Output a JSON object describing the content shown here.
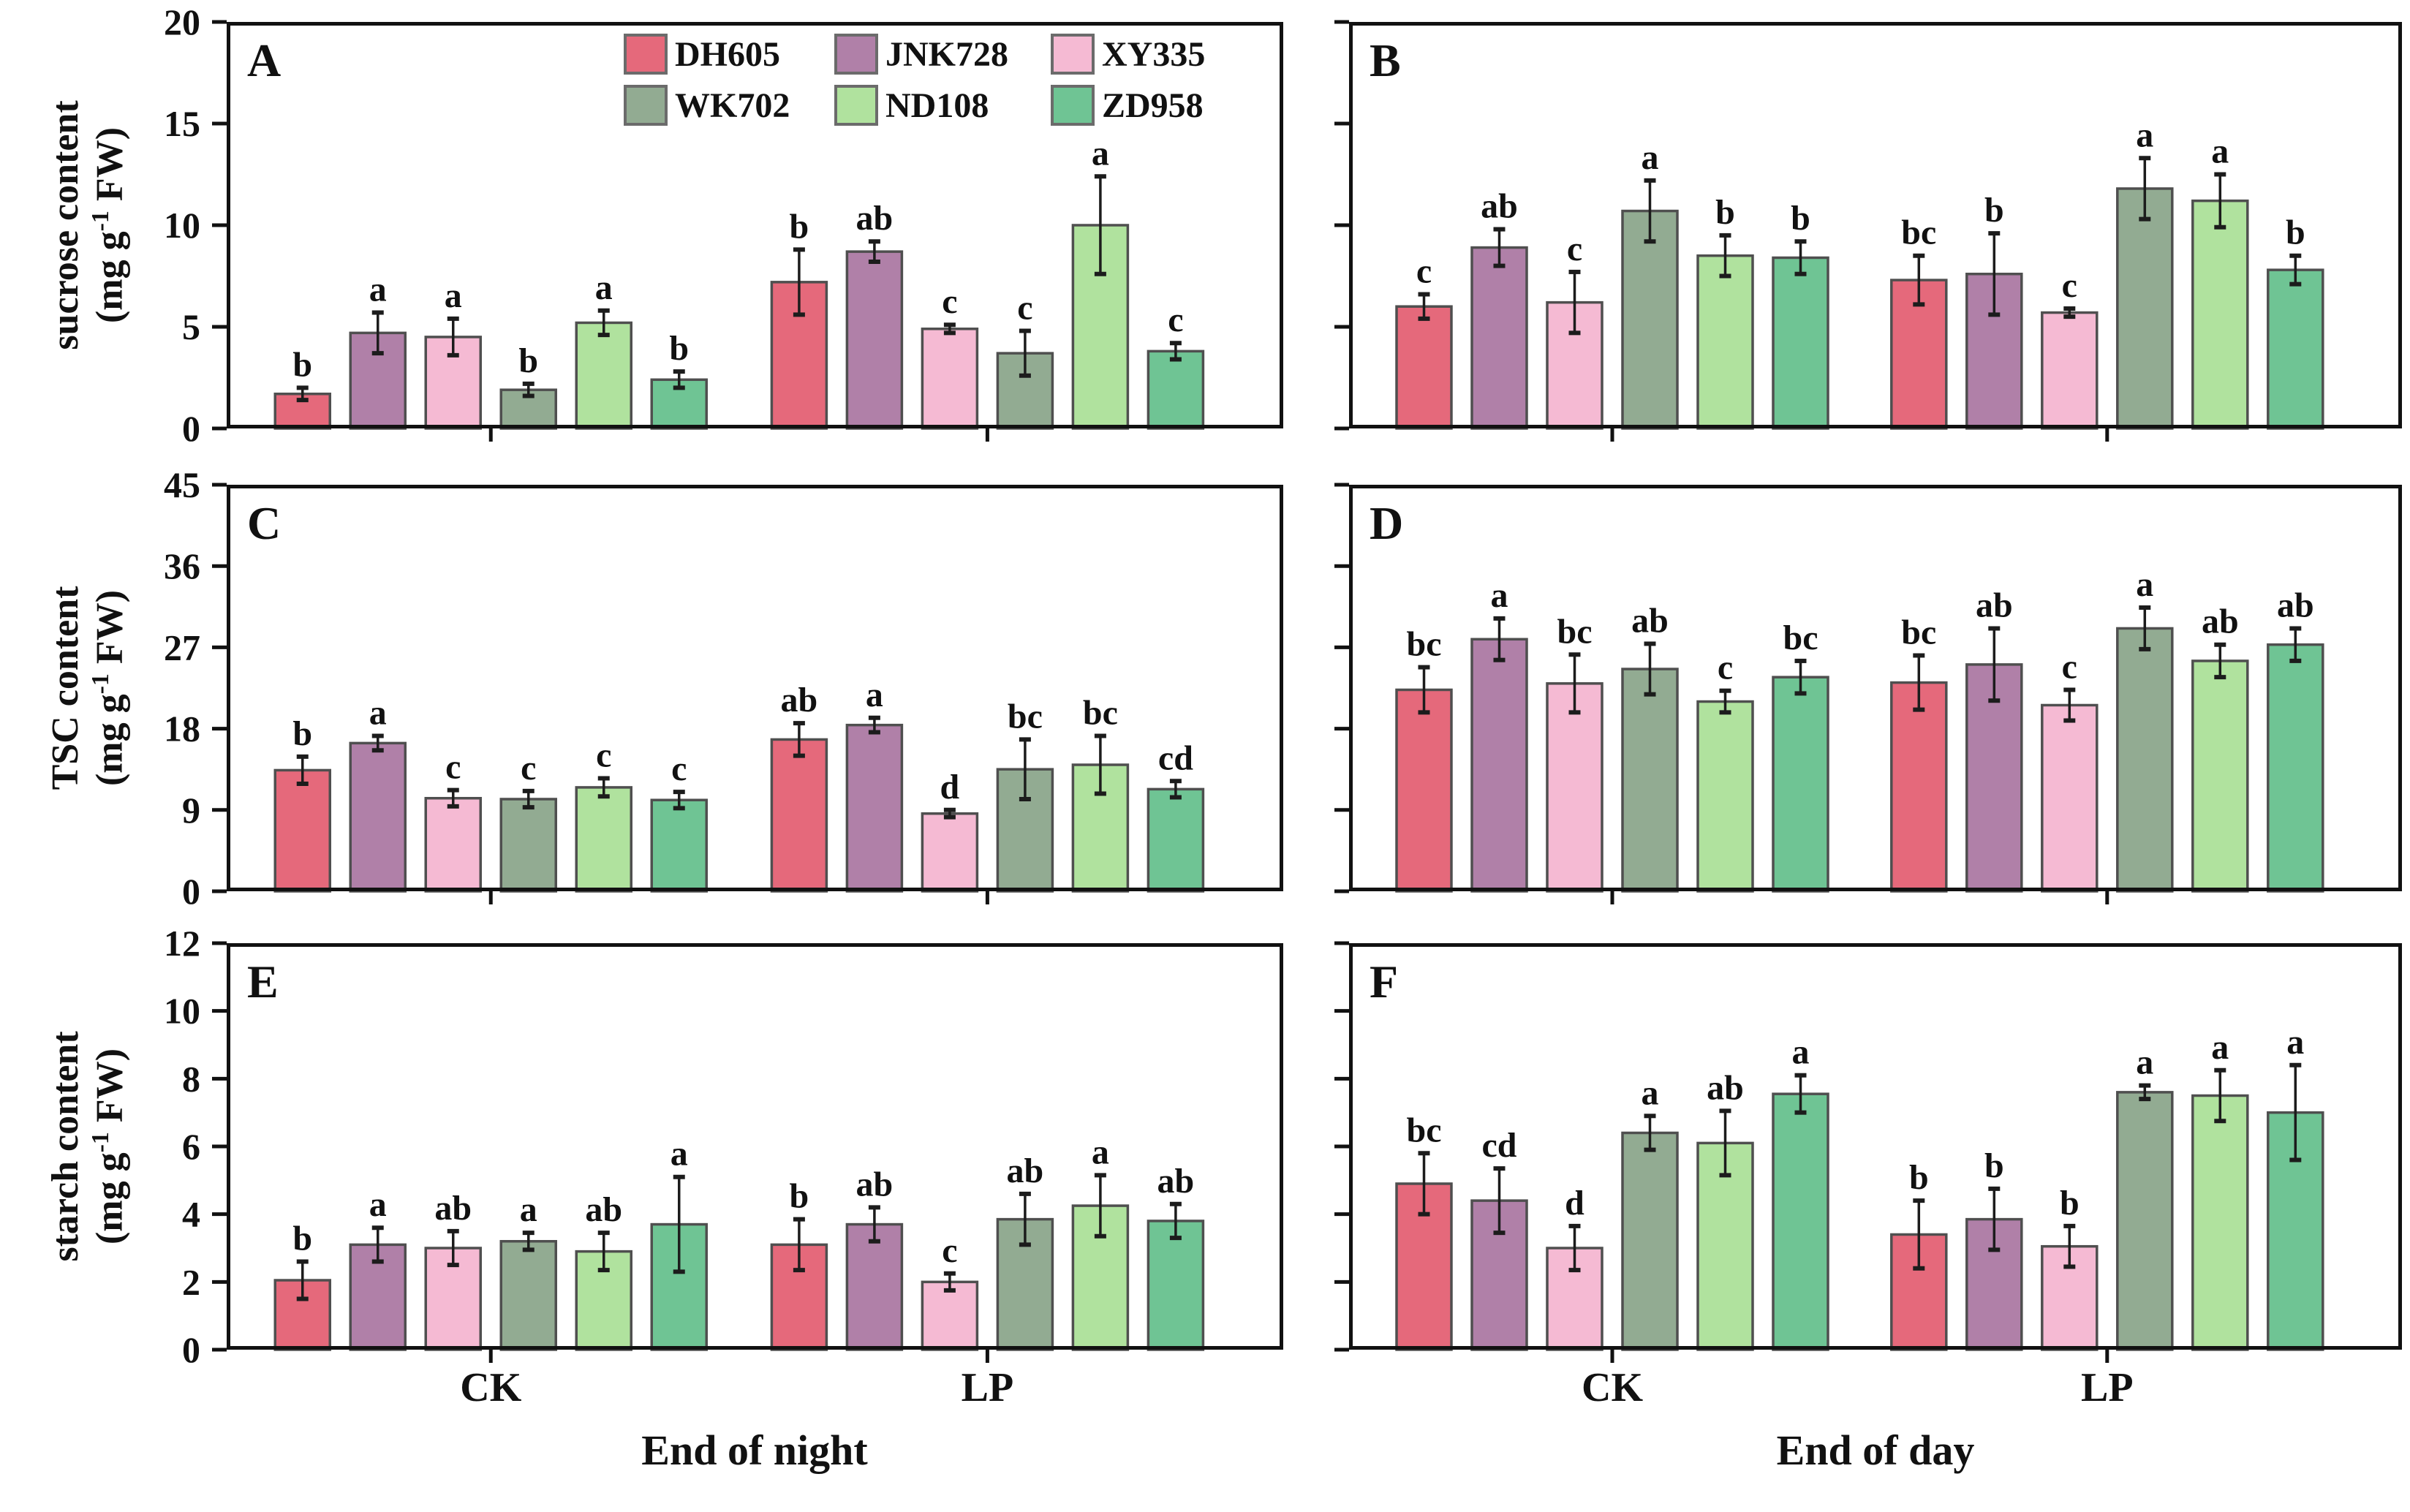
{
  "figure": {
    "row_labels": [
      {
        "name": "sucrose content",
        "unit_pre": "(mg g",
        "unit_sup": "-1",
        "unit_post": " FW)"
      },
      {
        "name": "TSC content",
        "unit_pre": "(mg g",
        "unit_sup": "-1",
        "unit_post": " FW)"
      },
      {
        "name": "starch content",
        "unit_pre": "(mg g",
        "unit_sup": "-1",
        "unit_post": " FW)"
      }
    ],
    "x_titles": [
      "End of night",
      "End of day"
    ],
    "group_labels": [
      "CK",
      "LP"
    ],
    "frame_color": "#111111",
    "bar_edge_color": "#4f4f4f",
    "error_bar_color": "#1c1c1c"
  },
  "varieties": [
    {
      "name": "DH605",
      "color": "#e5697b"
    },
    {
      "name": "JNK728",
      "color": "#b080a8"
    },
    {
      "name": "XY335",
      "color": "#f5bad3"
    },
    {
      "name": "WK702",
      "color": "#92ab92"
    },
    {
      "name": "ND108",
      "color": "#b0e29e"
    },
    {
      "name": "ZD958",
      "color": "#6fc494"
    }
  ],
  "chart_data": [
    {
      "label": "A",
      "type": "bar",
      "ylabel": "sucrose content (mg g-1 FW)",
      "ylim": [
        0,
        20
      ],
      "yticks": [
        0,
        5,
        10,
        15,
        20
      ],
      "show_ytick_labels": true,
      "show_group_labels": false,
      "categories": [
        "CK",
        "LP"
      ],
      "series": [
        {
          "name": "DH605",
          "values": [
            1.7,
            7.2
          ],
          "errors": [
            0.3,
            1.6
          ],
          "letters": [
            "b",
            "b"
          ]
        },
        {
          "name": "JNK728",
          "values": [
            4.7,
            8.7
          ],
          "errors": [
            1.0,
            0.5
          ],
          "letters": [
            "a",
            "ab"
          ]
        },
        {
          "name": "XY335",
          "values": [
            4.5,
            4.9
          ],
          "errors": [
            0.9,
            0.2
          ],
          "letters": [
            "a",
            "c"
          ]
        },
        {
          "name": "WK702",
          "values": [
            1.9,
            3.7
          ],
          "errors": [
            0.3,
            1.1
          ],
          "letters": [
            "b",
            "c"
          ]
        },
        {
          "name": "ND108",
          "values": [
            5.2,
            10.0
          ],
          "errors": [
            0.6,
            2.4
          ],
          "letters": [
            "a",
            "a"
          ]
        },
        {
          "name": "ZD958",
          "values": [
            2.4,
            3.8
          ],
          "errors": [
            0.4,
            0.4
          ],
          "letters": [
            "b",
            "c"
          ]
        }
      ]
    },
    {
      "label": "B",
      "type": "bar",
      "ylabel": "sucrose content (mg g-1 FW)",
      "ylim": [
        0,
        20
      ],
      "yticks": [
        0,
        5,
        10,
        15,
        20
      ],
      "show_ytick_labels": false,
      "show_group_labels": false,
      "categories": [
        "CK",
        "LP"
      ],
      "series": [
        {
          "name": "DH605",
          "values": [
            6.0,
            7.3
          ],
          "errors": [
            0.6,
            1.2
          ],
          "letters": [
            "c",
            "bc"
          ]
        },
        {
          "name": "JNK728",
          "values": [
            8.9,
            7.6
          ],
          "errors": [
            0.9,
            2.0
          ],
          "letters": [
            "ab",
            "b"
          ]
        },
        {
          "name": "XY335",
          "values": [
            6.2,
            5.7
          ],
          "errors": [
            1.5,
            0.2
          ],
          "letters": [
            "c",
            "c"
          ]
        },
        {
          "name": "WK702",
          "values": [
            10.7,
            11.8
          ],
          "errors": [
            1.5,
            1.5
          ],
          "letters": [
            "a",
            "a"
          ]
        },
        {
          "name": "ND108",
          "values": [
            8.5,
            11.2
          ],
          "errors": [
            1.0,
            1.3
          ],
          "letters": [
            "b",
            "a"
          ]
        },
        {
          "name": "ZD958",
          "values": [
            8.4,
            7.8
          ],
          "errors": [
            0.8,
            0.7
          ],
          "letters": [
            "b",
            "b"
          ]
        }
      ]
    },
    {
      "label": "C",
      "type": "bar",
      "ylabel": "TSC content (mg g-1 FW)",
      "ylim": [
        0,
        45
      ],
      "yticks": [
        0,
        9,
        18,
        27,
        36,
        45
      ],
      "show_ytick_labels": true,
      "show_group_labels": false,
      "categories": [
        "CK",
        "LP"
      ],
      "series": [
        {
          "name": "DH605",
          "values": [
            13.4,
            16.8
          ],
          "errors": [
            1.5,
            1.8
          ],
          "letters": [
            "b",
            "ab"
          ]
        },
        {
          "name": "JNK728",
          "values": [
            16.4,
            18.4
          ],
          "errors": [
            0.8,
            0.8
          ],
          "letters": [
            "a",
            "a"
          ]
        },
        {
          "name": "XY335",
          "values": [
            10.3,
            8.6
          ],
          "errors": [
            0.9,
            0.4
          ],
          "letters": [
            "c",
            "d"
          ]
        },
        {
          "name": "WK702",
          "values": [
            10.2,
            13.5
          ],
          "errors": [
            0.9,
            3.3
          ],
          "letters": [
            "c",
            "bc"
          ]
        },
        {
          "name": "ND108",
          "values": [
            11.5,
            14.0
          ],
          "errors": [
            1.0,
            3.2
          ],
          "letters": [
            "c",
            "bc"
          ]
        },
        {
          "name": "ZD958",
          "values": [
            10.1,
            11.3
          ],
          "errors": [
            0.9,
            0.9
          ],
          "letters": [
            "c",
            "cd"
          ]
        }
      ]
    },
    {
      "label": "D",
      "type": "bar",
      "ylabel": "TSC content (mg g-1 FW)",
      "ylim": [
        0,
        45
      ],
      "yticks": [
        0,
        9,
        18,
        27,
        36,
        45
      ],
      "show_ytick_labels": false,
      "show_group_labels": false,
      "categories": [
        "CK",
        "LP"
      ],
      "series": [
        {
          "name": "DH605",
          "values": [
            22.3,
            23.1
          ],
          "errors": [
            2.5,
            3.0
          ],
          "letters": [
            "bc",
            "bc"
          ]
        },
        {
          "name": "JNK728",
          "values": [
            27.9,
            25.1
          ],
          "errors": [
            2.3,
            4.0
          ],
          "letters": [
            "a",
            "ab"
          ]
        },
        {
          "name": "XY335",
          "values": [
            23.0,
            20.6
          ],
          "errors": [
            3.2,
            1.7
          ],
          "letters": [
            "bc",
            "c"
          ]
        },
        {
          "name": "WK702",
          "values": [
            24.6,
            29.1
          ],
          "errors": [
            2.8,
            2.3
          ],
          "letters": [
            "ab",
            "a"
          ]
        },
        {
          "name": "ND108",
          "values": [
            21.0,
            25.5
          ],
          "errors": [
            1.2,
            1.8
          ],
          "letters": [
            "c",
            "ab"
          ]
        },
        {
          "name": "ZD958",
          "values": [
            23.7,
            27.3
          ],
          "errors": [
            1.8,
            1.8
          ],
          "letters": [
            "bc",
            "ab"
          ]
        }
      ]
    },
    {
      "label": "E",
      "type": "bar",
      "ylabel": "starch content (mg g-1 FW)",
      "ylim": [
        0,
        12
      ],
      "yticks": [
        0,
        2,
        4,
        6,
        8,
        10,
        12
      ],
      "show_ytick_labels": true,
      "show_group_labels": true,
      "categories": [
        "CK",
        "LP"
      ],
      "series": [
        {
          "name": "DH605",
          "values": [
            2.05,
            3.1
          ],
          "errors": [
            0.55,
            0.75
          ],
          "letters": [
            "b",
            "b"
          ]
        },
        {
          "name": "JNK728",
          "values": [
            3.1,
            3.7
          ],
          "errors": [
            0.5,
            0.5
          ],
          "letters": [
            "a",
            "ab"
          ]
        },
        {
          "name": "XY335",
          "values": [
            3.0,
            2.0
          ],
          "errors": [
            0.5,
            0.25
          ],
          "letters": [
            "ab",
            "c"
          ]
        },
        {
          "name": "WK702",
          "values": [
            3.2,
            3.85
          ],
          "errors": [
            0.25,
            0.75
          ],
          "letters": [
            "a",
            "ab"
          ]
        },
        {
          "name": "ND108",
          "values": [
            2.9,
            4.25
          ],
          "errors": [
            0.55,
            0.9
          ],
          "letters": [
            "ab",
            "a"
          ]
        },
        {
          "name": "ZD958",
          "values": [
            3.7,
            3.8
          ],
          "errors": [
            1.4,
            0.5
          ],
          "letters": [
            "a",
            "ab"
          ]
        }
      ]
    },
    {
      "label": "F",
      "type": "bar",
      "ylabel": "starch content (mg g-1 FW)",
      "ylim": [
        0,
        12
      ],
      "yticks": [
        0,
        2,
        4,
        6,
        8,
        10,
        12
      ],
      "show_ytick_labels": false,
      "show_group_labels": true,
      "categories": [
        "CK",
        "LP"
      ],
      "series": [
        {
          "name": "DH605",
          "values": [
            4.9,
            3.4
          ],
          "errors": [
            0.9,
            1.0
          ],
          "letters": [
            "bc",
            "b"
          ]
        },
        {
          "name": "JNK728",
          "values": [
            4.4,
            3.85
          ],
          "errors": [
            0.95,
            0.9
          ],
          "letters": [
            "cd",
            "b"
          ]
        },
        {
          "name": "XY335",
          "values": [
            3.0,
            3.05
          ],
          "errors": [
            0.65,
            0.6
          ],
          "letters": [
            "d",
            "b"
          ]
        },
        {
          "name": "WK702",
          "values": [
            6.4,
            7.6
          ],
          "errors": [
            0.5,
            0.2
          ],
          "letters": [
            "a",
            "a"
          ]
        },
        {
          "name": "ND108",
          "values": [
            6.1,
            7.5
          ],
          "errors": [
            0.95,
            0.75
          ],
          "letters": [
            "ab",
            "a"
          ]
        },
        {
          "name": "ZD958",
          "values": [
            7.55,
            7.0
          ],
          "errors": [
            0.55,
            1.4
          ],
          "letters": [
            "a",
            "a"
          ]
        }
      ]
    }
  ]
}
